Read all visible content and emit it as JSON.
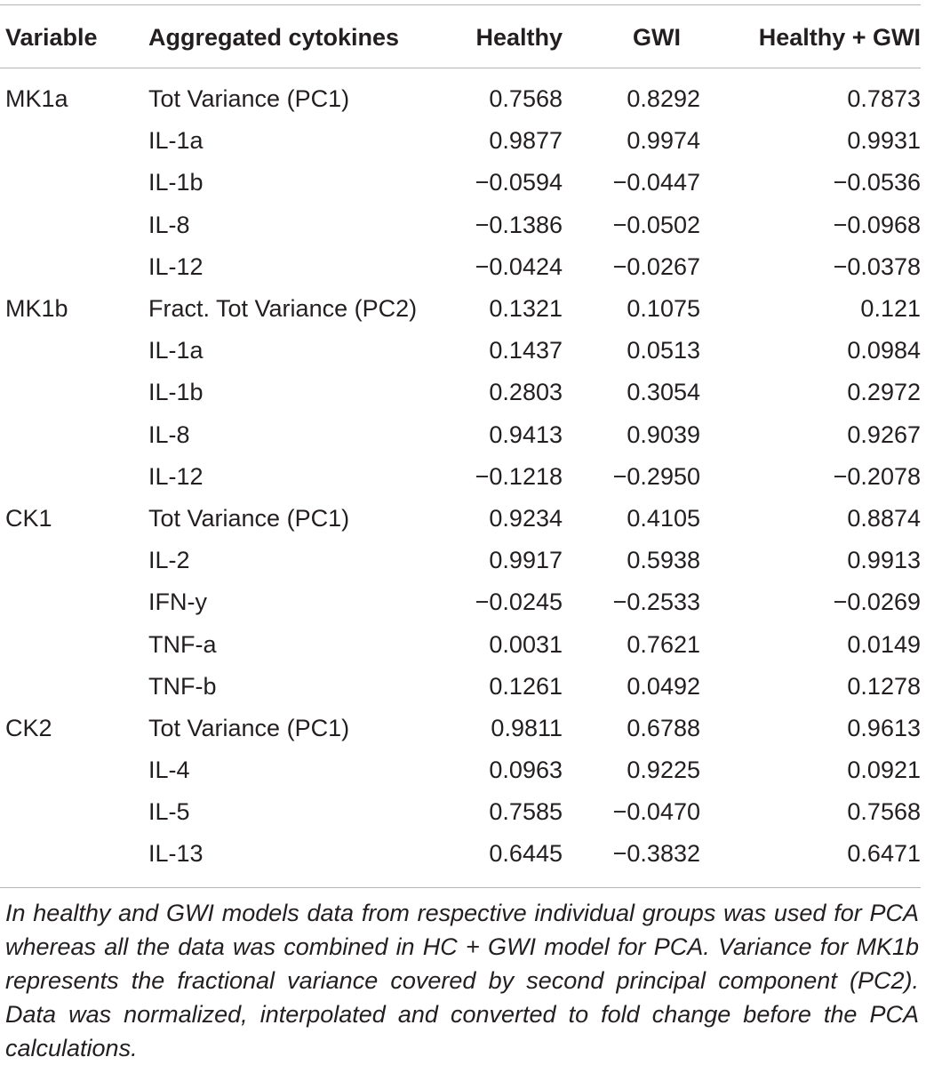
{
  "table": {
    "headers": {
      "variable": "Variable",
      "aggregated": "Aggregated cytokines",
      "healthy": "Healthy",
      "gwi": "GWI",
      "healthy_gwi": "Healthy + GWI"
    },
    "rows": [
      {
        "variable": "MK1a",
        "cytokine": "Tot Variance (PC1)",
        "healthy": "0.7568",
        "gwi": "0.8292",
        "healthy_gwi": "0.7873"
      },
      {
        "variable": "",
        "cytokine": "IL-1a",
        "healthy": "0.9877",
        "gwi": "0.9974",
        "healthy_gwi": "0.9931"
      },
      {
        "variable": "",
        "cytokine": "IL-1b",
        "healthy": "−0.0594",
        "gwi": "−0.0447",
        "healthy_gwi": "−0.0536"
      },
      {
        "variable": "",
        "cytokine": "IL-8",
        "healthy": "−0.1386",
        "gwi": "−0.0502",
        "healthy_gwi": "−0.0968"
      },
      {
        "variable": "",
        "cytokine": "IL-12",
        "healthy": "−0.0424",
        "gwi": "−0.0267",
        "healthy_gwi": "−0.0378"
      },
      {
        "variable": "MK1b",
        "cytokine": "Fract. Tot Variance (PC2)",
        "healthy": "0.1321",
        "gwi": "0.1075",
        "healthy_gwi": "0.121"
      },
      {
        "variable": "",
        "cytokine": "IL-1a",
        "healthy": "0.1437",
        "gwi": "0.0513",
        "healthy_gwi": "0.0984"
      },
      {
        "variable": "",
        "cytokine": "IL-1b",
        "healthy": "0.2803",
        "gwi": "0.3054",
        "healthy_gwi": "0.2972"
      },
      {
        "variable": "",
        "cytokine": "IL-8",
        "healthy": "0.9413",
        "gwi": "0.9039",
        "healthy_gwi": "0.9267"
      },
      {
        "variable": "",
        "cytokine": "IL-12",
        "healthy": "−0.1218",
        "gwi": "−0.2950",
        "healthy_gwi": "−0.2078"
      },
      {
        "variable": "CK1",
        "cytokine": "Tot Variance (PC1)",
        "healthy": "0.9234",
        "gwi": "0.4105",
        "healthy_gwi": "0.8874"
      },
      {
        "variable": "",
        "cytokine": "IL-2",
        "healthy": "0.9917",
        "gwi": "0.5938",
        "healthy_gwi": "0.9913"
      },
      {
        "variable": "",
        "cytokine": "IFN-y",
        "healthy": "−0.0245",
        "gwi": "−0.2533",
        "healthy_gwi": "−0.0269"
      },
      {
        "variable": "",
        "cytokine": "TNF-a",
        "healthy": "0.0031",
        "gwi": "0.7621",
        "healthy_gwi": "0.0149"
      },
      {
        "variable": "",
        "cytokine": "TNF-b",
        "healthy": "0.1261",
        "gwi": "0.0492",
        "healthy_gwi": "0.1278"
      },
      {
        "variable": "CK2",
        "cytokine": "Tot Variance (PC1)",
        "healthy": "0.9811",
        "gwi": "0.6788",
        "healthy_gwi": "0.9613"
      },
      {
        "variable": "",
        "cytokine": "IL-4",
        "healthy": "0.0963",
        "gwi": "0.9225",
        "healthy_gwi": "0.0921"
      },
      {
        "variable": "",
        "cytokine": "IL-5",
        "healthy": "0.7585",
        "gwi": "−0.0470",
        "healthy_gwi": "0.7568"
      },
      {
        "variable": "",
        "cytokine": "IL-13",
        "healthy": "0.6445",
        "gwi": "−0.3832",
        "healthy_gwi": "0.6471"
      }
    ]
  },
  "footnote": "In healthy and GWI models data from respective individual groups was used for PCA whereas all the data was combined in HC + GWI model for PCA. Variance for MK1b represents the fractional variance covered by second principal component (PC2). Data was normalized, interpolated and converted to fold change before the PCA calculations."
}
